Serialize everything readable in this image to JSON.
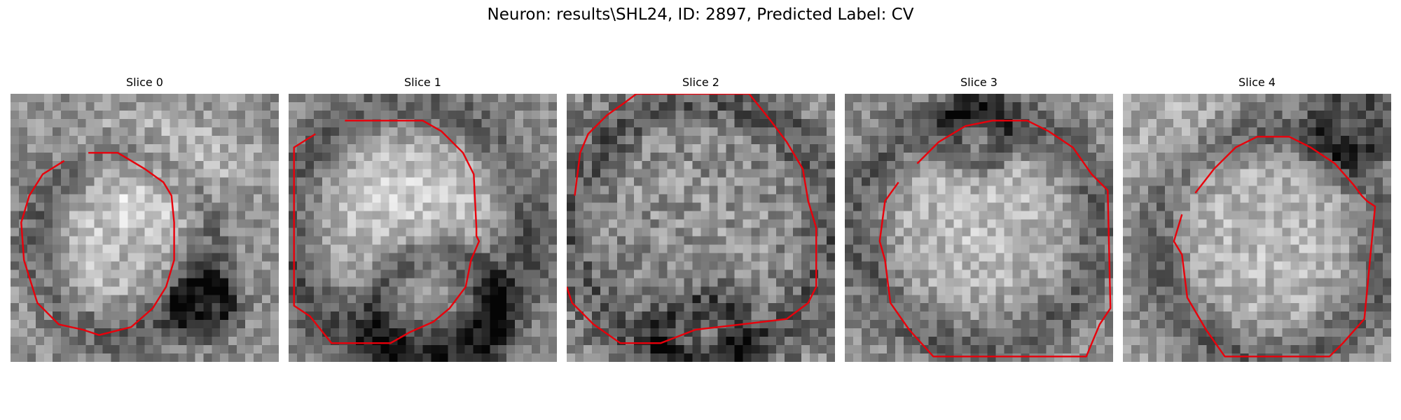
{
  "figure": {
    "title": "Neuron: results\\SHL24, ID: 2897, Predicted Label: CV"
  },
  "panels": [
    {
      "title": "Slice 0"
    },
    {
      "title": "Slice 1"
    },
    {
      "title": "Slice 2"
    },
    {
      "title": "Slice 3"
    },
    {
      "title": "Slice 4"
    }
  ],
  "style": {
    "contour_color": "#e8000b",
    "grayscale_colormap": "gray"
  }
}
